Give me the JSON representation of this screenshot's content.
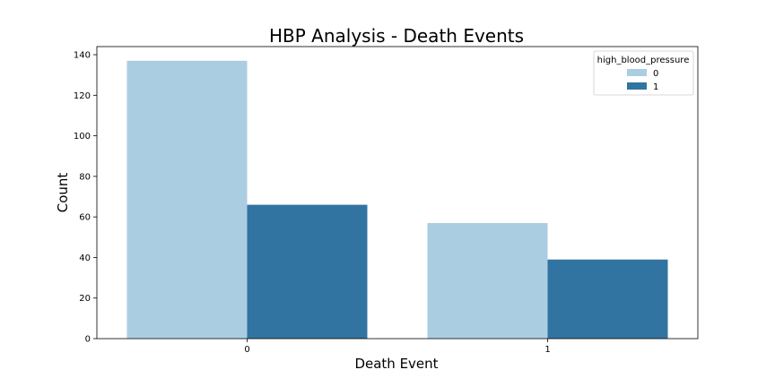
{
  "chart_data": {
    "type": "bar",
    "title": "HBP Analysis - Death Events",
    "xlabel": "Death Event",
    "ylabel": "Count",
    "categories": [
      "0",
      "1"
    ],
    "series": [
      {
        "name": "0",
        "values": [
          137,
          57
        ],
        "color": "#abcde2"
      },
      {
        "name": "1",
        "values": [
          66,
          39
        ],
        "color": "#3274a1"
      }
    ],
    "ylim": [
      0,
      144
    ],
    "yticks": [
      0,
      20,
      40,
      60,
      80,
      100,
      120,
      140
    ],
    "legend": {
      "title": "high_blood_pressure",
      "position": "top-right"
    },
    "grid": false
  }
}
